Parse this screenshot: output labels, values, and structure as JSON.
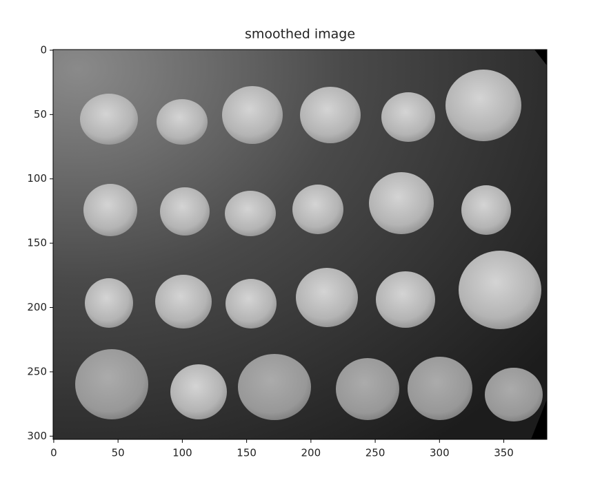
{
  "chart_data": {
    "type": "image",
    "title": "smoothed image",
    "xlim": [
      -0.5,
      383.5
    ],
    "ylim": [
      302.5,
      -0.5
    ],
    "xticks": [
      0,
      50,
      100,
      150,
      200,
      250,
      300,
      350
    ],
    "yticks": [
      0,
      50,
      100,
      150,
      200,
      250,
      300
    ],
    "colormap": "gray"
  }
}
